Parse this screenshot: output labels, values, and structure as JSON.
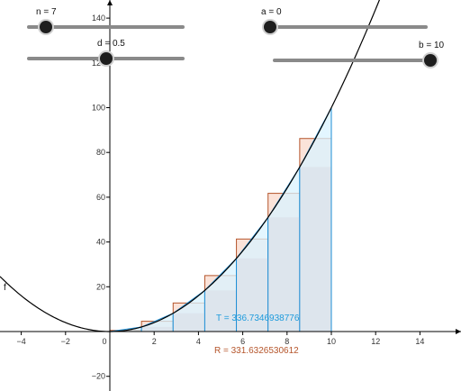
{
  "sliders": {
    "n": {
      "label": "n = 7",
      "value": 7,
      "min": 1,
      "max": 50
    },
    "d": {
      "label": "d = 0.5",
      "value": 0.5,
      "min": 0,
      "max": 1
    },
    "a": {
      "label": "a = 0",
      "value": 0,
      "min": 0,
      "max": 10
    },
    "b": {
      "label": "b = 10",
      "value": 10,
      "min": 0,
      "max": 10
    }
  },
  "function_label": "f",
  "trapezoid_sum": "T = 336.7346938776",
  "riemann_sum": "R = 331.6326530612",
  "colors": {
    "curve": "#000000",
    "trapezoid_fill": "#d9f3ff",
    "trapezoid_stroke": "#1e8fd6",
    "riemann_stroke": "#b5552b",
    "riemann_fill": "#fbe3d9",
    "overlap_fill": "#d9dde6",
    "trapezoid_text": "#1e9bdc",
    "riemann_text": "#b5552b",
    "axis": "#000000",
    "tick_text": "#333333"
  },
  "chart_data": {
    "type": "area",
    "function": "x^2",
    "xlim": [
      -5,
      16
    ],
    "ylim": [
      -25,
      147
    ],
    "x_ticks": [
      -4,
      -2,
      0,
      2,
      4,
      6,
      8,
      10,
      12,
      14
    ],
    "y_ticks": [
      -20,
      20,
      40,
      60,
      80,
      100,
      120,
      140
    ],
    "tick_labels_x": [
      "−4",
      "−2",
      "0",
      "2",
      "4",
      "6",
      "8",
      "10",
      "12",
      "14"
    ],
    "tick_labels_y": [
      "−20",
      "20",
      "40",
      "60",
      "80",
      "100",
      "120",
      "140"
    ],
    "grid": false,
    "interval": [
      0,
      10
    ],
    "subdivisions": 7,
    "riemann_point_offset": 0.5
  }
}
